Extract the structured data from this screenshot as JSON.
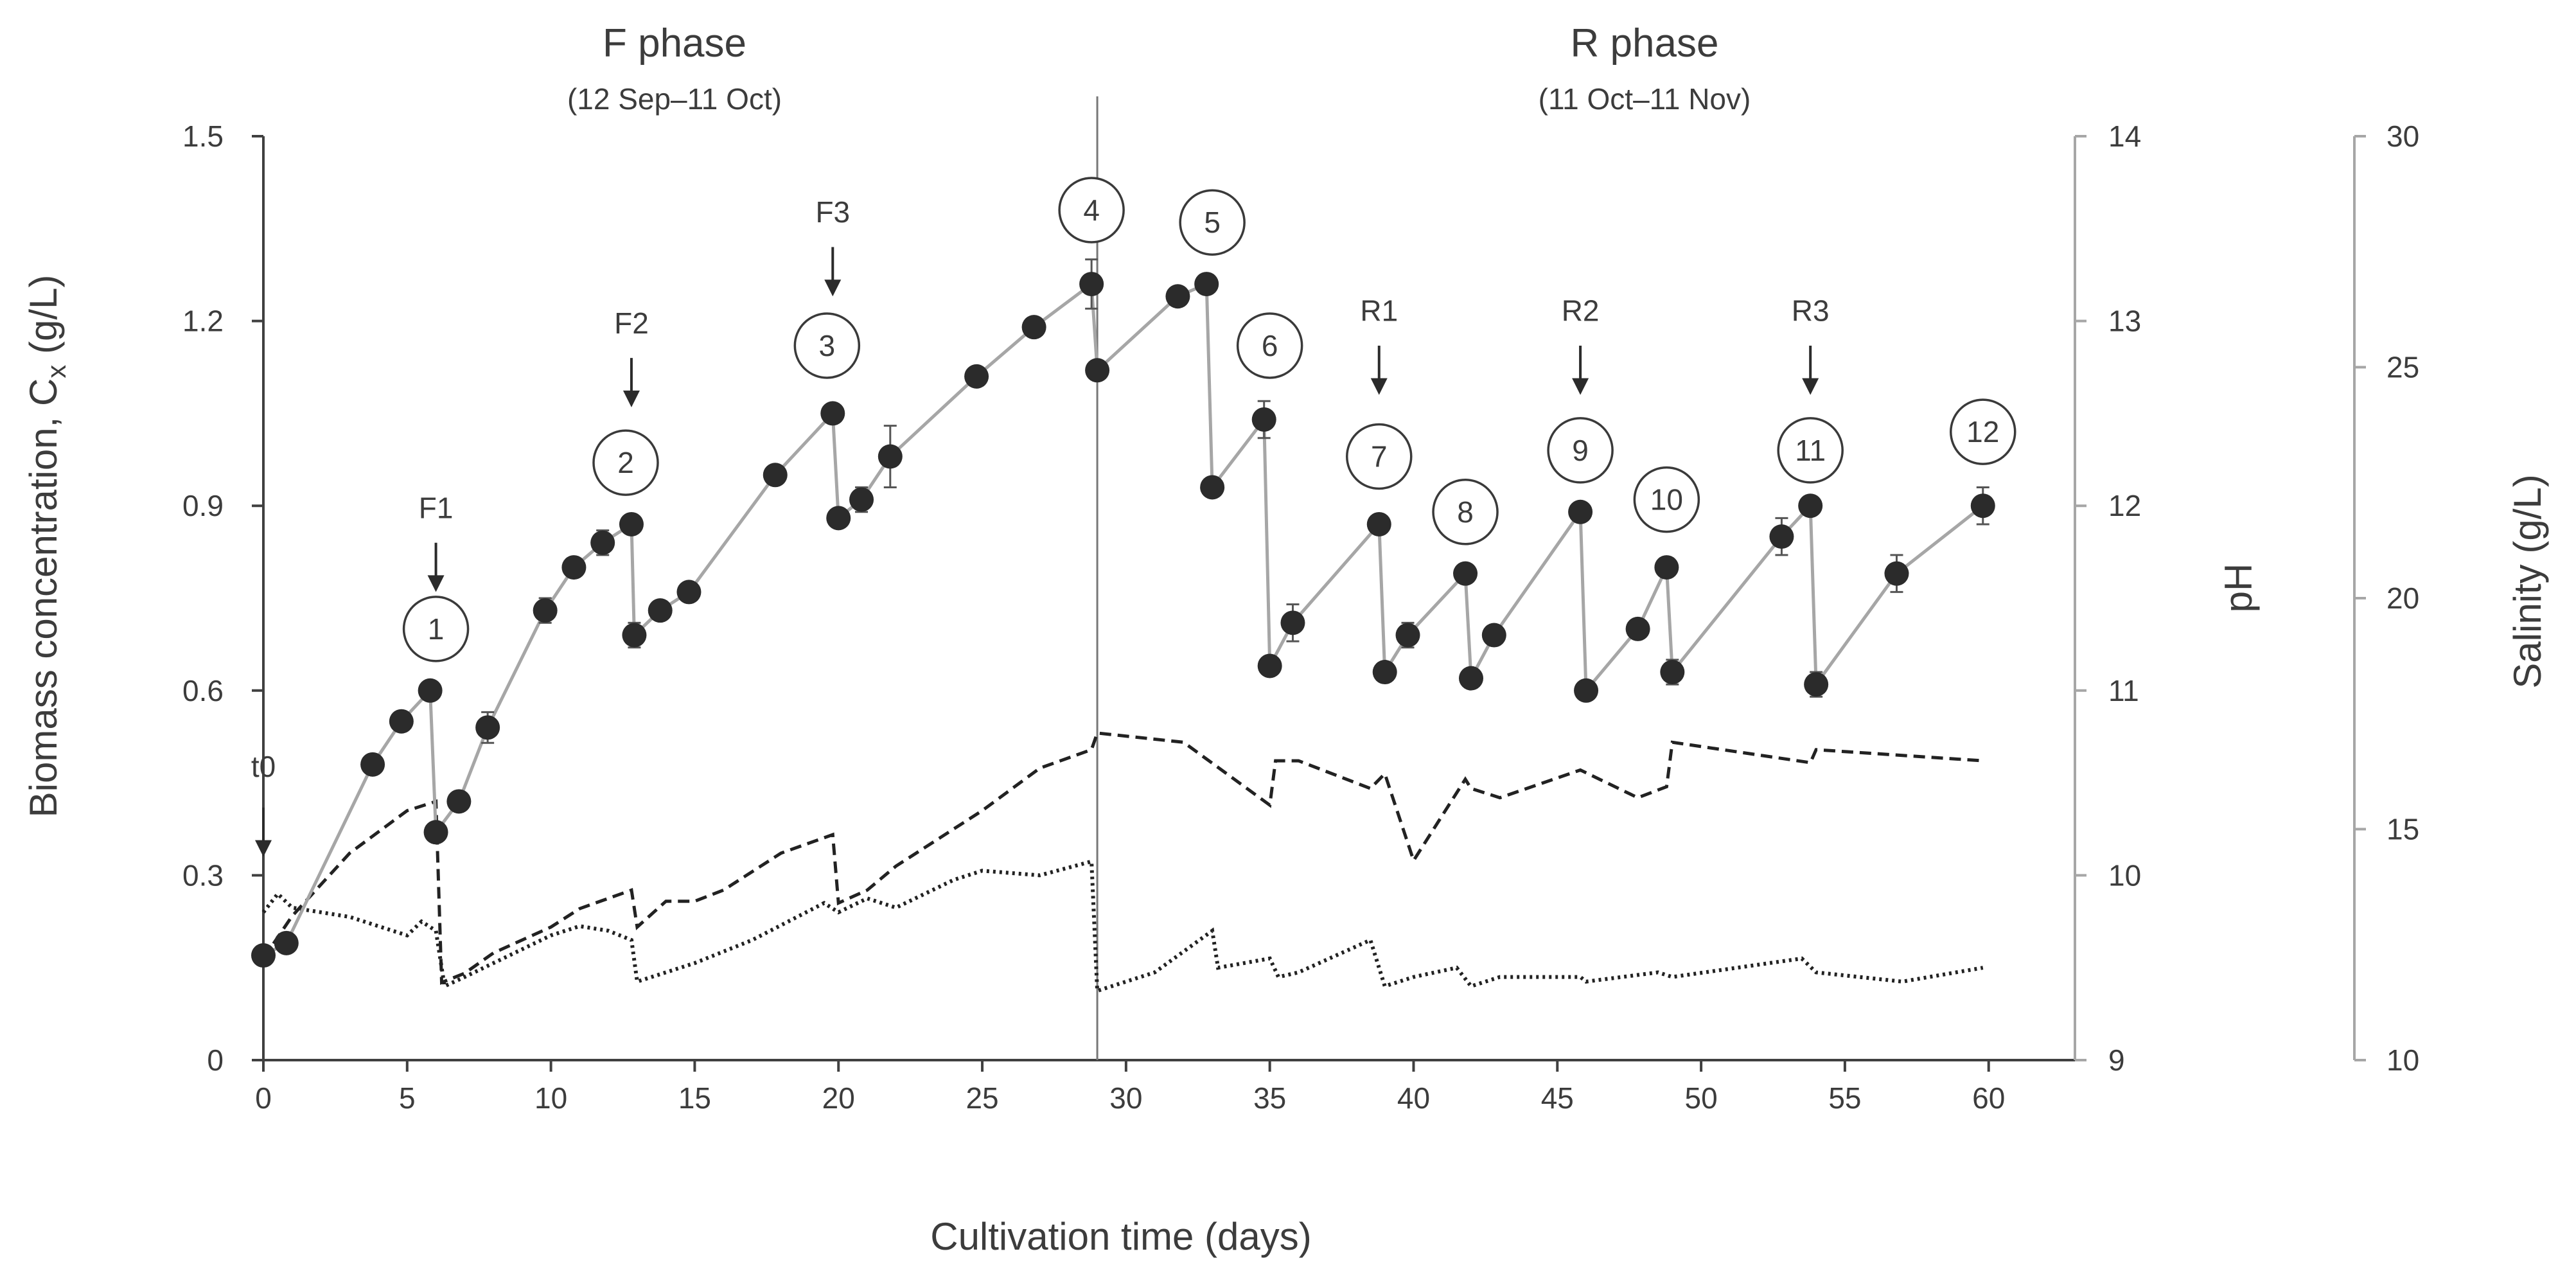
{
  "chart_data": {
    "type": "line",
    "title": "",
    "xlabel": "Cultivation time (days)",
    "ylabel_left": "Biomass concentration, C",
    "ylabel_left_subscript": "x",
    "ylabel_left_unit": " (g/L)",
    "ylabel_ph": "pH",
    "ylabel_salinity": "Salinity (g/L)",
    "xlim": [
      0,
      63
    ],
    "ylim_biomass": [
      0,
      1.5
    ],
    "ylim_ph": [
      9,
      14
    ],
    "ylim_salinity": [
      10,
      30
    ],
    "x_ticks": [
      "0",
      "5",
      "10",
      "15",
      "20",
      "25",
      "30",
      "35",
      "40",
      "45",
      "50",
      "55",
      "60"
    ],
    "y_ticks_biomass": [
      "0",
      "0.3",
      "0.6",
      "0.9",
      "1.2",
      "1.5"
    ],
    "y_ticks_ph": [
      "9",
      "10",
      "11",
      "12",
      "13",
      "14"
    ],
    "y_ticks_salinity": [
      "10",
      "15",
      "20",
      "25",
      "30"
    ],
    "phases": [
      {
        "title": "F phase",
        "dates": "(12 Sep–11 Oct)",
        "x_center": 14.5
      },
      {
        "title": "R phase",
        "dates": "(11 Oct–11 Nov)",
        "x_center": 46.5
      }
    ],
    "phase_divider_x": 29,
    "biomass": {
      "name": "Biomass concentration",
      "x": [
        0,
        0.8,
        3.8,
        4.8,
        5.8,
        6.0,
        6.8,
        7.8,
        9.8,
        10.8,
        11.8,
        12.8,
        12.9,
        13.8,
        14.8,
        17.8,
        19.8,
        20.0,
        20.8,
        21.8,
        24.8,
        26.8,
        28.8,
        29.0,
        31.8,
        32.8,
        33.0,
        34.8,
        35.0,
        35.8,
        38.8,
        39.0,
        39.8,
        41.8,
        42.0,
        42.8,
        45.8,
        46.0,
        47.8,
        48.8,
        49.0,
        52.8,
        53.8,
        54.0,
        56.8,
        59.8
      ],
      "y": [
        0.17,
        0.19,
        0.48,
        0.55,
        0.6,
        0.37,
        0.42,
        0.54,
        0.73,
        0.8,
        0.84,
        0.87,
        0.69,
        0.73,
        0.76,
        0.95,
        1.05,
        0.88,
        0.91,
        0.98,
        1.11,
        1.19,
        1.26,
        1.12,
        1.24,
        1.26,
        0.93,
        1.04,
        0.64,
        0.71,
        0.87,
        0.63,
        0.69,
        0.79,
        0.62,
        0.69,
        0.89,
        0.6,
        0.7,
        0.8,
        0.63,
        0.85,
        0.9,
        0.61,
        0.79,
        0.9
      ],
      "err": [
        0,
        0,
        0,
        0,
        0,
        0,
        0,
        0.025,
        0.02,
        0,
        0.02,
        0,
        0.02,
        0,
        0,
        0,
        0,
        0,
        0.02,
        0.05,
        0,
        0,
        0.04,
        0,
        0,
        0,
        0,
        0.03,
        0,
        0.03,
        0,
        0,
        0.02,
        0,
        0,
        0,
        0,
        0,
        0,
        0,
        0.02,
        0.03,
        0,
        0.02,
        0.03,
        0.03
      ]
    },
    "ph": {
      "name": "pH",
      "style": "dashed",
      "x": [
        0,
        1,
        3,
        5,
        6,
        6.2,
        7,
        8,
        10,
        11,
        12.8,
        13,
        14,
        15,
        16,
        18,
        19.8,
        20,
        21,
        22,
        25,
        27,
        28.8,
        29,
        32,
        35,
        35.2,
        36,
        38.5,
        39,
        40,
        41.8,
        42,
        43,
        45.8,
        47.8,
        48.8,
        49,
        53.8,
        54,
        59.8
      ],
      "y": [
        9.55,
        9.78,
        10.12,
        10.35,
        10.4,
        9.42,
        9.47,
        9.58,
        9.72,
        9.82,
        9.92,
        9.72,
        9.86,
        9.86,
        9.92,
        10.12,
        10.22,
        9.85,
        9.92,
        10.05,
        10.35,
        10.58,
        10.68,
        10.77,
        10.72,
        10.38,
        10.62,
        10.62,
        10.47,
        10.55,
        10.08,
        10.52,
        10.47,
        10.42,
        10.57,
        10.42,
        10.48,
        10.72,
        10.61,
        10.68,
        10.62
      ]
    },
    "salinity": {
      "name": "Salinity",
      "style": "dotted",
      "x": [
        0,
        0.5,
        1,
        3,
        4,
        5,
        5.5,
        6,
        6.3,
        7,
        8,
        10,
        11,
        12,
        12.8,
        13,
        15,
        17,
        19.5,
        20,
        21,
        22,
        24,
        25,
        27,
        28.8,
        29,
        31,
        33,
        33.2,
        35,
        35.3,
        36,
        38.5,
        39,
        40,
        41.5,
        42,
        43,
        45.8,
        46,
        48.5,
        49,
        53.5,
        54,
        57,
        59.8
      ],
      "y": [
        13.2,
        13.6,
        13.3,
        13.1,
        12.9,
        12.7,
        13.0,
        12.8,
        11.6,
        11.8,
        12.1,
        12.7,
        12.9,
        12.8,
        12.6,
        11.7,
        12.1,
        12.6,
        13.4,
        13.2,
        13.5,
        13.3,
        13.9,
        14.1,
        14.0,
        14.3,
        11.5,
        11.9,
        12.8,
        12.0,
        12.2,
        11.8,
        11.9,
        12.6,
        11.6,
        11.8,
        12.0,
        11.6,
        11.8,
        11.8,
        11.7,
        11.9,
        11.8,
        12.2,
        11.9,
        11.7,
        12.0
      ]
    },
    "harvest_labels": [
      {
        "text": "1",
        "x": 6.0,
        "y": 0.7
      },
      {
        "text": "2",
        "x": 12.6,
        "y": 0.97
      },
      {
        "text": "3",
        "x": 19.6,
        "y": 1.16
      },
      {
        "text": "4",
        "x": 28.8,
        "y": 1.38
      },
      {
        "text": "5",
        "x": 33.0,
        "y": 1.36
      },
      {
        "text": "6",
        "x": 35.0,
        "y": 1.16
      },
      {
        "text": "7",
        "x": 38.8,
        "y": 0.98
      },
      {
        "text": "8",
        "x": 41.8,
        "y": 0.89
      },
      {
        "text": "9",
        "x": 45.8,
        "y": 0.99
      },
      {
        "text": "10",
        "x": 48.8,
        "y": 0.91
      },
      {
        "text": "11",
        "x": 53.8,
        "y": 0.99
      },
      {
        "text": "12",
        "x": 59.8,
        "y": 1.02
      }
    ],
    "event_markers": [
      {
        "text": "t0",
        "x": 0,
        "label_y": 0.46,
        "arrow_top": 0.41,
        "arrow_bottom": 0.33
      },
      {
        "text": "F1",
        "x": 6,
        "label_y": 0.88,
        "arrow_top": 0.84,
        "arrow_bottom": 0.76
      },
      {
        "text": "F2",
        "x": 12.8,
        "label_y": 1.18,
        "arrow_top": 1.14,
        "arrow_bottom": 1.06
      },
      {
        "text": "F3",
        "x": 19.8,
        "label_y": 1.36,
        "arrow_top": 1.32,
        "arrow_bottom": 1.24
      },
      {
        "text": "R1",
        "x": 38.8,
        "label_y": 1.2,
        "arrow_top": 1.16,
        "arrow_bottom": 1.08
      },
      {
        "text": "R2",
        "x": 45.8,
        "label_y": 1.2,
        "arrow_top": 1.16,
        "arrow_bottom": 1.08
      },
      {
        "text": "R3",
        "x": 53.8,
        "label_y": 1.2,
        "arrow_top": 1.16,
        "arrow_bottom": 1.08
      }
    ],
    "colors": {
      "marker": "#2b2b2b",
      "connector": "#a6a6a6",
      "axis": "#404040",
      "right_axis": "#a6a6a6",
      "secondary_lines": "#222222",
      "text": "#3c3c3c"
    }
  }
}
